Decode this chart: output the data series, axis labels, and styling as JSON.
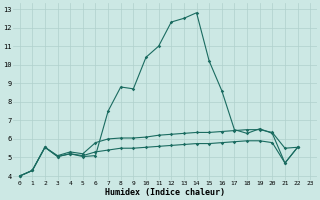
{
  "xlabel": "Humidex (Indice chaleur)",
  "bg_color": "#cce8e4",
  "grid_color": "#b0d0cc",
  "line_color": "#1a6b60",
  "xlim": [
    -0.5,
    23.5
  ],
  "ylim": [
    3.8,
    13.3
  ],
  "xticks": [
    0,
    1,
    2,
    3,
    4,
    5,
    6,
    7,
    8,
    9,
    10,
    11,
    12,
    13,
    14,
    15,
    16,
    17,
    18,
    19,
    20,
    21,
    22,
    23
  ],
  "yticks": [
    4,
    5,
    6,
    7,
    8,
    9,
    10,
    11,
    12,
    13
  ],
  "line1_x": [
    0,
    1,
    2,
    3,
    4,
    5,
    6,
    7,
    8,
    9,
    10,
    11,
    12,
    13,
    14,
    15,
    16,
    17,
    18,
    19,
    20,
    21,
    22
  ],
  "line1_y": [
    4.0,
    4.3,
    5.55,
    5.05,
    5.2,
    5.05,
    5.1,
    7.5,
    8.8,
    8.7,
    10.4,
    11.0,
    12.3,
    12.5,
    12.8,
    10.2,
    8.6,
    6.5,
    6.3,
    6.55,
    6.3,
    4.7,
    5.55
  ],
  "line2_x": [
    0,
    1,
    2,
    3,
    4,
    5,
    6,
    7,
    8,
    9,
    10,
    11,
    12,
    13,
    14,
    15,
    16,
    17,
    18,
    19,
    20,
    21,
    22
  ],
  "line2_y": [
    4.0,
    4.3,
    5.55,
    5.1,
    5.3,
    5.2,
    5.8,
    6.0,
    6.05,
    6.05,
    6.1,
    6.2,
    6.25,
    6.3,
    6.35,
    6.35,
    6.4,
    6.45,
    6.5,
    6.5,
    6.35,
    5.5,
    5.55
  ],
  "line3_x": [
    0,
    1,
    2,
    3,
    4,
    5,
    6,
    7,
    8,
    9,
    10,
    11,
    12,
    13,
    14,
    15,
    16,
    17,
    18,
    19,
    20,
    21,
    22
  ],
  "line3_y": [
    4.0,
    4.3,
    5.55,
    5.05,
    5.2,
    5.1,
    5.3,
    5.4,
    5.5,
    5.5,
    5.55,
    5.6,
    5.65,
    5.7,
    5.75,
    5.75,
    5.8,
    5.85,
    5.9,
    5.9,
    5.8,
    4.7,
    5.55
  ]
}
